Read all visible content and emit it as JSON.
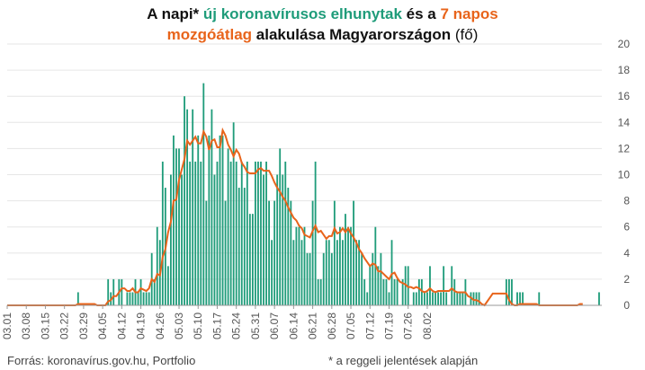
{
  "title": {
    "line1": [
      {
        "text": "A napi* ",
        "color": "#111111"
      },
      {
        "text": "új koronavírusos elhunytak",
        "color": "#1f9c7a"
      },
      {
        "text": " és a ",
        "color": "#111111"
      },
      {
        "text": "7 napos",
        "color": "#e8641b"
      }
    ],
    "line2": [
      {
        "text": "mozgóátlag",
        "color": "#e8641b"
      },
      {
        "text": " alakulása Magyarországon ",
        "color": "#111111"
      },
      {
        "text": "(fő)",
        "color": "#111111",
        "normal": true
      }
    ]
  },
  "footer": {
    "source": "Forrás: koronavírus.gov.hu, Portfolio",
    "note": "* a reggeli jelentések alapján"
  },
  "colors": {
    "bars": "#1f9c7a",
    "line": "#e8641b",
    "grid": "#e6e6e6",
    "axis": "#555555"
  },
  "chart_data": {
    "type": "bar",
    "title": "A napi* új koronavírusos elhunytak és a 7 napos mozgóátlag alakulása Magyarországon (fő)",
    "x_tick_labels": [
      "03.01",
      "03.08",
      "03.15",
      "03.22",
      "03.29",
      "04.05",
      "04.12",
      "04.19",
      "04.26",
      "05.03",
      "05.10",
      "05.17",
      "05.24",
      "05.31",
      "06.07",
      "06.14",
      "06.21",
      "06.28",
      "07.05",
      "07.12",
      "07.19",
      "07.26",
      "08.02"
    ],
    "ylim": [
      0,
      20
    ],
    "y_ticks": [
      0,
      2,
      4,
      6,
      8,
      10,
      12,
      14,
      16,
      18,
      20
    ],
    "grid": true,
    "y_axis_side": "right",
    "series": [
      {
        "name": "új koronavírusos elhunytak",
        "kind": "bar",
        "values": [
          0,
          0,
          0,
          0,
          0,
          0,
          0,
          0,
          0,
          0,
          0,
          0,
          0,
          0,
          0,
          0,
          0,
          0,
          0,
          0,
          0,
          0,
          0,
          0,
          0,
          0,
          1,
          0,
          0,
          0,
          0,
          0,
          0,
          0,
          0,
          0,
          0,
          2,
          1,
          2,
          0,
          2,
          2,
          0,
          1,
          1,
          1,
          2,
          1,
          2,
          1,
          1,
          1,
          4,
          2,
          6,
          5,
          11,
          9,
          3,
          10,
          13,
          12,
          12,
          10,
          16,
          15,
          11,
          15,
          11,
          13,
          11,
          17,
          8,
          13,
          15,
          10,
          11,
          13,
          13,
          8,
          12,
          11,
          14,
          11,
          9,
          11,
          9,
          11,
          7,
          7,
          11,
          11,
          11,
          10,
          11,
          8,
          5,
          8,
          10,
          12,
          10,
          11,
          9,
          8,
          5,
          6,
          6,
          5,
          6,
          4,
          4,
          8,
          11,
          2,
          2,
          4,
          5,
          5,
          4,
          8,
          5,
          6,
          5,
          7,
          6,
          6,
          8,
          5,
          5,
          4,
          2,
          1,
          3,
          4,
          6,
          3,
          4,
          2,
          2,
          1,
          5,
          2,
          2,
          0,
          2,
          3,
          3,
          0,
          1,
          1,
          2,
          2,
          1,
          1,
          3,
          1,
          1,
          1,
          1,
          3,
          1,
          0,
          3,
          2,
          1,
          1,
          1,
          2,
          0,
          1,
          1,
          1,
          1,
          0,
          0,
          0,
          0,
          0,
          0,
          0,
          0,
          0,
          2,
          2,
          2,
          0,
          1,
          1,
          1,
          0,
          0,
          0,
          0,
          0,
          1,
          0,
          0,
          0,
          0,
          0,
          0,
          0,
          0,
          0,
          0,
          0,
          0,
          0,
          0,
          0,
          0,
          0,
          0,
          0,
          0,
          0,
          1,
          0
        ]
      },
      {
        "name": "7 napos mozgóátlag",
        "kind": "line",
        "values": [
          0,
          0,
          0,
          0,
          0,
          0,
          0,
          0,
          0,
          0,
          0,
          0,
          0,
          0,
          0,
          0,
          0,
          0,
          0,
          0,
          0,
          0,
          0,
          0,
          0,
          0,
          0.1,
          0.1,
          0.1,
          0.1,
          0.1,
          0.1,
          0.1,
          0,
          0,
          0,
          0,
          0.3,
          0.4,
          0.7,
          0.7,
          1,
          1.3,
          1.3,
          1.1,
          1.1,
          1.3,
          1,
          1,
          1.3,
          1.2,
          1.1,
          1.3,
          2,
          1.8,
          2.4,
          2.3,
          3.7,
          4.3,
          5.6,
          6.4,
          8,
          8.1,
          9.6,
          10.4,
          11.2,
          12.6,
          12.3,
          12.6,
          12.9,
          12.4,
          12.4,
          13.3,
          12.9,
          11.9,
          12.6,
          12.7,
          12.1,
          12.1,
          13.4,
          13,
          12.3,
          11.9,
          11.4,
          11.9,
          11.6,
          10.9,
          10.6,
          10.2,
          10.1,
          10.1,
          10.1,
          10.4,
          10.5,
          10.3,
          10.3,
          10.3,
          9.9,
          9.4,
          9,
          8.7,
          8.3,
          8,
          7.5,
          7.1,
          6.7,
          6.5,
          6.1,
          5.9,
          5.4,
          5.3,
          5.2,
          5.7,
          6.1,
          5.6,
          5.7,
          5.4,
          5.1,
          5.3,
          5.3,
          5.9,
          5.5,
          5.6,
          5.9,
          5.6,
          5.9,
          5.5,
          5.2,
          4.8,
          4.3,
          4,
          3.6,
          3.3,
          3,
          3.2,
          3.1,
          2.6,
          2.6,
          2.4,
          2.2,
          2,
          2.4,
          2.5,
          2.1,
          1.8,
          1.7,
          1.6,
          1.4,
          1.4,
          1.3,
          1.4,
          1.3,
          1.1,
          1,
          1.1,
          1.3,
          1.1,
          1,
          1.1,
          1.1,
          1.1,
          1.1,
          1.1,
          1.3,
          1.1,
          1,
          1,
          1,
          1,
          0.7,
          0.6,
          0.4,
          0.4,
          0.3,
          0.1,
          0,
          0.3,
          0.6,
          0.9,
          0.9,
          0.9,
          0.9,
          0.9,
          0.9,
          0.4,
          0.1,
          0,
          0,
          0.1,
          0.1,
          0.1,
          0.1,
          0.1,
          0.1,
          0.1,
          0,
          0,
          0,
          0,
          0,
          0,
          0,
          0,
          0,
          0,
          0,
          0,
          0,
          0,
          0,
          0.1,
          0.1
        ]
      }
    ]
  }
}
